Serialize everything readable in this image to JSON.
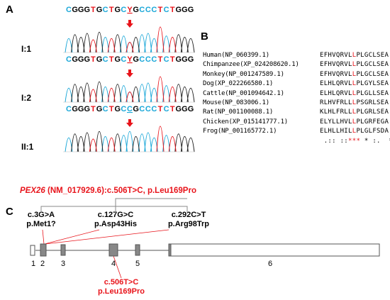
{
  "panels": {
    "a": "A",
    "b": "B",
    "c": "C"
  },
  "panel_a": {
    "samples": [
      {
        "label": "I:1",
        "sequence": [
          "C",
          "G",
          "G",
          "G",
          "T",
          "G",
          "C",
          "T",
          "G",
          "C",
          "Y",
          "G",
          "C",
          "C",
          "C",
          "T",
          "C",
          "T",
          "G",
          "G",
          "G"
        ]
      },
      {
        "label": "I:2",
        "sequence": [
          "C",
          "G",
          "G",
          "G",
          "T",
          "G",
          "C",
          "T",
          "G",
          "C",
          "Y",
          "G",
          "C",
          "C",
          "C",
          "T",
          "C",
          "T",
          "G",
          "G",
          "G"
        ]
      },
      {
        "label": "II:1",
        "sequence": [
          "C",
          "G",
          "G",
          "G",
          "T",
          "G",
          "C",
          "T",
          "G",
          "C",
          "C",
          "G",
          "C",
          "C",
          "C",
          "T",
          "C",
          "T",
          "G",
          "G",
          "G"
        ]
      }
    ],
    "variant_index": 10,
    "caption": {
      "gene": "PEX26",
      "rest": " (NM_017929.6):c.506T>C, p.Leu169Pro"
    },
    "colors": {
      "C": "#1aa7d8",
      "G": "#000000",
      "T": "#e8141b",
      "Y": "#e8141b"
    }
  },
  "panel_b": {
    "rows": [
      {
        "species": "Human(NP_060399.1)",
        "pre": "EFHVQRVL",
        "mid": "L",
        "post": "PLGCLSEA"
      },
      {
        "species": "Chimpanzee(XP_024208620.1)",
        "pre": "EFHVQRVL",
        "mid": "L",
        "post": "PLGCLSEA"
      },
      {
        "species": "Monkey(NP_001247589.1)",
        "pre": "EFHVQRVL",
        "mid": "L",
        "post": "PLGCLSEA"
      },
      {
        "species": "Dog(XP_022266580.1)",
        "pre": "ELHLQRVL",
        "mid": "L",
        "post": "PLGYLSEA"
      },
      {
        "species": "Cattle(NP_001094642.1)",
        "pre": "ELHLQRVL",
        "mid": "L",
        "post": "PLGLLSEA"
      },
      {
        "species": "Mouse(NP_083006.1)",
        "pre": "RLHVFRLL",
        "mid": "L",
        "post": "PSGRLSEA"
      },
      {
        "species": "Rat(NP_001100088.1)",
        "pre": "KLHLFRLL",
        "mid": "L",
        "post": "PLGRLSEA"
      },
      {
        "species": "Chicken(XP_015141777.1)",
        "pre": "ELYLLHVL",
        "mid": "L",
        "post": "PLGRFEGA"
      },
      {
        "species": "Frog(NP_001165772.1)",
        "pre": "ELHLLHIL",
        "mid": "L",
        "post": "PLGLFSDA"
      }
    ],
    "consensus": {
      "pre": " .:: ::",
      "mid": "***",
      "post": " * :.  *"
    }
  },
  "panel_c": {
    "mutations_top": [
      {
        "line1": "c.3G>A",
        "line2": "p.Met1?"
      },
      {
        "line1": "c.127G>C",
        "line2": "p.Asp43His"
      },
      {
        "line1": "c.292C>T",
        "line2": "p.Arg98Trp"
      }
    ],
    "mutation_bottom": {
      "line1": "c.506T>C",
      "line2": "p.Leu169Pro"
    },
    "exon_numbers": [
      "1",
      "2",
      "3",
      "4",
      "5",
      "6"
    ]
  }
}
